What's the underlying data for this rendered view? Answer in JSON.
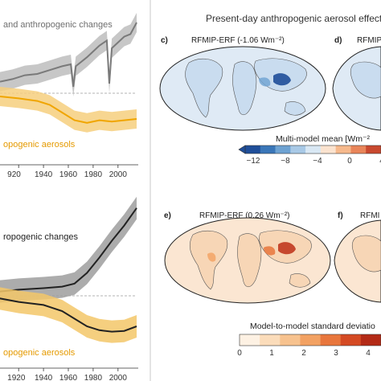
{
  "figure_title": "Present-day anthropogenic aerosol effect",
  "chart_data": [
    {
      "type": "area",
      "series": [
        {
          "name": "and anthropogenic changes",
          "color": "#7a7a7a",
          "band_color": "#bdbdbd",
          "x": [
            1905,
            1915,
            1925,
            1935,
            1945,
            1955,
            1962,
            1964,
            1966,
            1975,
            1985,
            1991,
            1993,
            1995,
            2005,
            2010,
            2015
          ],
          "y": [
            0.18,
            0.22,
            0.28,
            0.3,
            0.36,
            0.42,
            0.45,
            0.1,
            0.42,
            0.56,
            0.74,
            0.82,
            0.15,
            0.7,
            0.88,
            0.92,
            1.1
          ]
        },
        {
          "name": "opogenic aerosols",
          "color": "#f0a500",
          "band_color": "#f6cf7e",
          "x": [
            1905,
            1920,
            1935,
            1945,
            1955,
            1965,
            1975,
            1985,
            1995,
            2005,
            2015
          ],
          "y": [
            -0.05,
            -0.08,
            -0.12,
            -0.18,
            -0.3,
            -0.42,
            -0.46,
            -0.42,
            -0.44,
            -0.42,
            -0.4
          ]
        }
      ],
      "x_ticks": [
        "920",
        "1940",
        "1960",
        "1980",
        "2000"
      ]
    },
    {
      "type": "line",
      "series": [
        {
          "name": "ropogenic changes",
          "color": "#222222",
          "band_color": "#9e9e9e",
          "x": [
            1900,
            1920,
            1940,
            1955,
            1965,
            1975,
            1985,
            1995,
            2005,
            2015
          ],
          "y": [
            0.05,
            0.08,
            0.1,
            0.12,
            0.16,
            0.3,
            0.5,
            0.72,
            0.92,
            1.15
          ]
        },
        {
          "name": "opogenic aerosols",
          "color": "#222222",
          "band_color": "#f3c768",
          "x": [
            1900,
            1920,
            1940,
            1955,
            1965,
            1975,
            1985,
            1995,
            2005,
            2015
          ],
          "y": [
            -0.02,
            -0.08,
            -0.12,
            -0.2,
            -0.3,
            -0.4,
            -0.45,
            -0.47,
            -0.46,
            -0.4
          ]
        }
      ],
      "x_ticks": [
        "1920",
        "1940",
        "1960",
        "1980",
        "2000"
      ]
    }
  ],
  "maps": {
    "c_label": "c)",
    "c_title": "RFMIP-ERF (-1.06 Wm⁻²)",
    "d_label": "d)",
    "d_title": "RFMIP",
    "e_label": "e)",
    "e_title": "RFMIP-ERF (0.26 Wm⁻²)",
    "f_label": "f)",
    "f_title": "RFMI"
  },
  "colorbar_mean": {
    "title": "Multi-model mean [Wm⁻²",
    "ticks": [
      "−12",
      "−8",
      "−4",
      "0",
      "4"
    ],
    "colors": [
      "#1f4e99",
      "#3a76b8",
      "#6ea2d2",
      "#a8c9e6",
      "#d9e8f4",
      "#fbe3cf",
      "#f6b98c",
      "#e9855a",
      "#c9492f"
    ]
  },
  "colorbar_sd": {
    "title": "Model-to-model standard deviatio",
    "ticks": [
      "0",
      "1",
      "2",
      "3",
      "4"
    ],
    "colors": [
      "#fdf1e3",
      "#fbdcba",
      "#f7c28e",
      "#f2a162",
      "#e8763c",
      "#d44a23",
      "#b32a16"
    ]
  }
}
